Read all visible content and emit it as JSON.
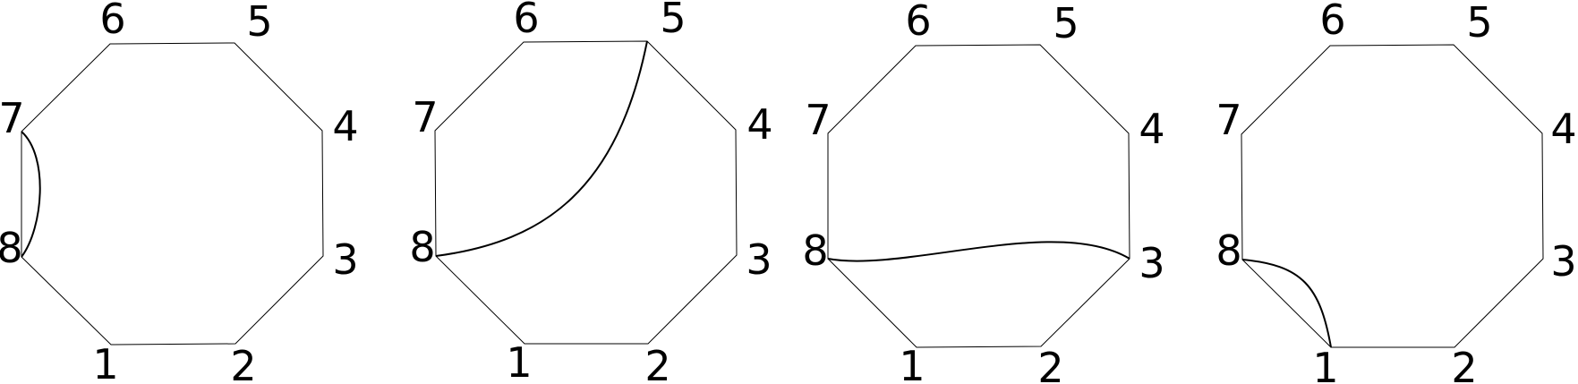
{
  "diagrams": [
    {
      "vertices": [
        "1",
        "2",
        "3",
        "4",
        "5",
        "6",
        "7",
        "8"
      ],
      "chord": {
        "from": "7",
        "to": "8"
      }
    },
    {
      "vertices": [
        "1",
        "2",
        "3",
        "4",
        "5",
        "6",
        "7",
        "8"
      ],
      "chord": {
        "from": "8",
        "to": "5"
      }
    },
    {
      "vertices": [
        "1",
        "2",
        "3",
        "4",
        "5",
        "6",
        "7",
        "8"
      ],
      "chord": {
        "from": "8",
        "to": "3"
      }
    },
    {
      "vertices": [
        "1",
        "2",
        "3",
        "4",
        "5",
        "6",
        "7",
        "8"
      ],
      "chord": {
        "from": "8",
        "to": "1"
      }
    }
  ]
}
